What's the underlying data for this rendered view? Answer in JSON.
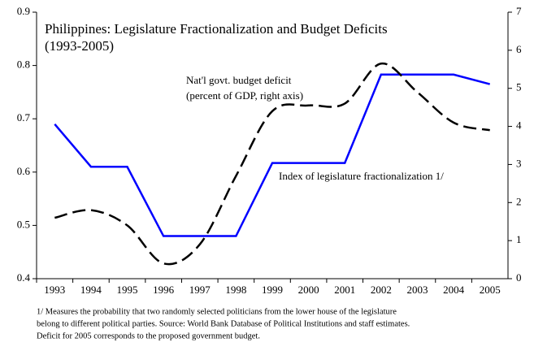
{
  "chart_data": {
    "type": "line",
    "title": [
      "Philippines: Legislature Fractionalization and Budget Deficits",
      "(1993-2005)"
    ],
    "annotations": [
      [
        "Nat'l govt. budget deficit",
        "(percent of GDP, right axis)"
      ],
      [
        "Index of legislature fractionalization 1/"
      ]
    ],
    "footnote": [
      "1/ Measures the probability that two randomly selected politicians from the lower house of the legislature",
      "belong to different political parties. Source: World Bank Database of Political Institutions and staff estimates.",
      "Deficit for 2005 corresponds to the proposed government budget."
    ],
    "categories": [
      "1993",
      "1994",
      "1995",
      "1996",
      "1997",
      "1998",
      "1999",
      "2000",
      "2001",
      "2002",
      "2003",
      "2004",
      "2005"
    ],
    "series": [
      {
        "name": "Index of legislature fractionalization 1/",
        "color": "#0000ff",
        "dash": false,
        "values": [
          0.69,
          0.61,
          0.61,
          0.48,
          0.48,
          0.48,
          0.617,
          0.617,
          0.617,
          0.783,
          0.783,
          0.783,
          0.765
        ]
      },
      {
        "name": "Nat'l govt. budget deficit",
        "color": "#000000",
        "dash": true,
        "axis": "y2",
        "values": [
          1.6,
          1.8,
          1.4,
          0.4,
          0.9,
          2.7,
          4.4,
          4.55,
          4.6,
          5.65,
          4.9,
          4.1,
          3.9
        ]
      }
    ],
    "ylim": [
      0.4,
      0.9
    ],
    "yticks": [
      0.4,
      0.5,
      0.6,
      0.7,
      0.8,
      0.9
    ],
    "y2lim": [
      0,
      7
    ],
    "y2ticks": [
      0,
      1,
      2,
      3,
      4,
      5,
      6,
      7
    ]
  }
}
